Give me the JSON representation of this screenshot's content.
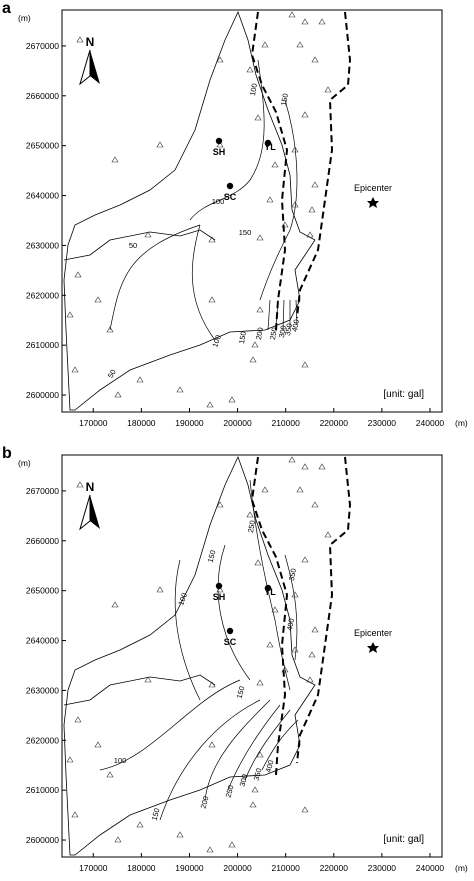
{
  "panels": [
    {
      "label": "a",
      "x_unit": "(m)",
      "y_unit": "(m)",
      "north": "N",
      "xlim": [
        163500,
        242500
      ],
      "ylim": [
        2596600,
        2677200
      ],
      "xticks": [
        170000,
        180000,
        190000,
        200000,
        210000,
        220000,
        230000,
        240000
      ],
      "yticks": [
        2600000,
        2610000,
        2620000,
        2630000,
        2640000,
        2650000,
        2660000,
        2670000
      ],
      "places": [
        "SH",
        "YL",
        "SC"
      ],
      "epicenter": "Epicenter",
      "unit": "[unit: gal]",
      "contour_labels": [
        "50",
        "100",
        "150",
        "150",
        "100",
        "50",
        "100",
        "150",
        "200",
        "250",
        "300",
        "350",
        "400"
      ]
    },
    {
      "label": "b",
      "x_unit": "(m)",
      "y_unit": "(m)",
      "north": "N",
      "xlim": [
        163500,
        242500
      ],
      "ylim": [
        2596600,
        2677200
      ],
      "xticks": [
        170000,
        180000,
        190000,
        200000,
        210000,
        220000,
        230000,
        240000
      ],
      "yticks": [
        2600000,
        2610000,
        2620000,
        2630000,
        2640000,
        2650000,
        2660000,
        2670000
      ],
      "places": [
        "SH",
        "YL",
        "SC"
      ],
      "epicenter": "Epicenter",
      "unit": "[unit: gal]",
      "contour_labels": [
        "150",
        "100",
        "150",
        "250",
        "350",
        "400",
        "100",
        "150",
        "200",
        "250",
        "300",
        "350",
        "400"
      ]
    }
  ]
}
